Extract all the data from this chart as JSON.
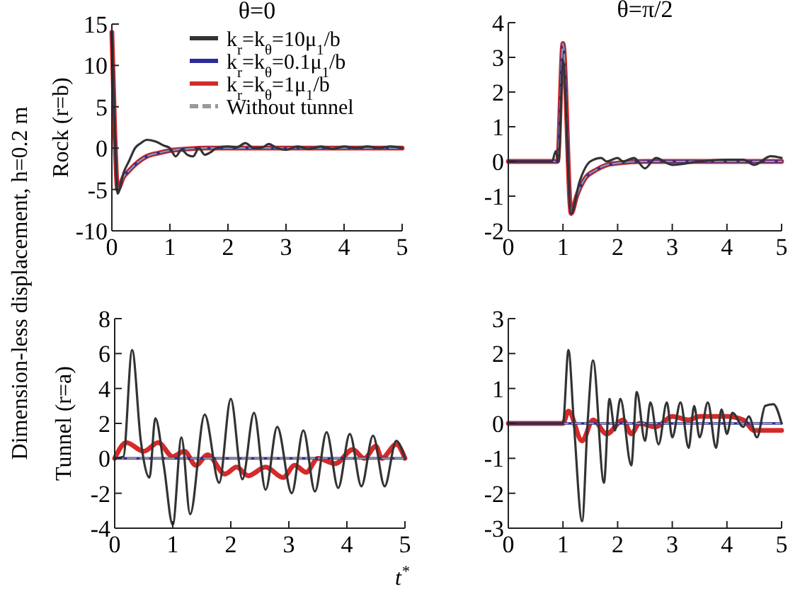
{
  "chart_data": [
    {
      "type": "line",
      "title": "θ=0",
      "ylabel": "Rock (r=b)",
      "annotations": [
        "Dimension-less displacement, h=0.2 m"
      ],
      "xlim": [
        0,
        5
      ],
      "xticks": [
        0,
        1,
        2,
        3,
        4,
        5
      ],
      "ylim": [
        -10,
        15
      ],
      "yticks": [
        -10,
        -5,
        0,
        5,
        10,
        15
      ],
      "legend": "top right",
      "marker": "none",
      "series": [
        {
          "name": "k$_{r}$=k$_{θ}$=10μ$_{1}$/b",
          "color": "#333333",
          "x": [
            0,
            0.05,
            0.1,
            0.2,
            0.3,
            0.4,
            0.5,
            0.6,
            0.75,
            0.9,
            1.0,
            1.1,
            1.2,
            1.3,
            1.4,
            1.5,
            1.6,
            1.7,
            1.8,
            2.0,
            2.15,
            2.3,
            2.45,
            2.6,
            2.7,
            2.85,
            3.0,
            3.2,
            3.4,
            3.6,
            3.8,
            4.0,
            4.2,
            4.4,
            4.6,
            4.8,
            5.0
          ],
          "values": [
            14,
            2,
            -5.5,
            -3,
            -1.5,
            0,
            0.6,
            1,
            0.8,
            0.3,
            0,
            -1,
            -0.2,
            -0.8,
            -1,
            0,
            -0.8,
            -0.5,
            0,
            0.2,
            0.1,
            0.6,
            0,
            0.1,
            0.5,
            0,
            -0.2,
            0.2,
            -0.1,
            0.2,
            -0.1,
            0.2,
            0,
            0.2,
            0,
            0.2,
            0
          ]
        },
        {
          "name": "k$_{r}$=k$_{θ}$=0.1μ$_{1}$/b",
          "color": "#2b2b9a",
          "x": [
            0,
            0.05,
            0.1,
            0.2,
            0.3,
            0.4,
            0.6,
            0.8,
            1.0,
            1.3,
            1.6,
            2.0,
            3.0,
            4.0,
            5.0
          ],
          "values": [
            14,
            2,
            -5,
            -3.5,
            -2.7,
            -2,
            -1,
            -0.6,
            -0.3,
            -0.1,
            0,
            0,
            0,
            0,
            0
          ]
        },
        {
          "name": "k$_{r}$=k$_{θ}$=1μ$_{1}$/b",
          "color": "#d42a2a",
          "x": [
            0,
            0.05,
            0.1,
            0.2,
            0.3,
            0.4,
            0.6,
            0.8,
            1.0,
            1.3,
            1.6,
            2.0,
            3.0,
            4.0,
            5.0
          ],
          "values": [
            14,
            2,
            -5,
            -3.5,
            -2.7,
            -2,
            -1,
            -0.6,
            -0.3,
            -0.1,
            0,
            0,
            0,
            0,
            0
          ]
        },
        {
          "name": "Without tunnel",
          "color": "#999999",
          "line_style": "dashed",
          "x": [
            0,
            0.05,
            0.1,
            0.2,
            0.3,
            0.4,
            0.6,
            0.8,
            1.0,
            1.3,
            1.6,
            2.0,
            3.0,
            4.0,
            5.0
          ],
          "values": [
            14,
            2,
            -5,
            -3.5,
            -2.7,
            -2,
            -1,
            -0.6,
            -0.3,
            -0.1,
            0,
            0,
            0,
            0,
            0
          ]
        }
      ]
    },
    {
      "type": "line",
      "title": "θ=π/2",
      "xlim": [
        0,
        5
      ],
      "xticks": [
        0,
        1,
        2,
        3,
        4,
        5
      ],
      "ylim": [
        -2,
        4
      ],
      "yticks": [
        -2,
        -1,
        0,
        1,
        2,
        3,
        4
      ],
      "marker": "none",
      "series": [
        {
          "color": "#333333",
          "x": [
            0,
            0.8,
            0.87,
            0.92,
            1.0,
            1.15,
            1.3,
            1.5,
            1.7,
            1.8,
            2.0,
            2.1,
            2.3,
            2.5,
            2.7,
            3.0,
            3.5,
            4.0,
            4.3,
            4.5,
            4.8,
            5.0
          ],
          "values": [
            0,
            0,
            0.3,
            0,
            2.9,
            -1.5,
            -0.6,
            0,
            0.1,
            0,
            0.1,
            0,
            0.1,
            -0.2,
            0.1,
            -0.1,
            0,
            0.05,
            0.05,
            -0.1,
            0.15,
            0.1
          ]
        },
        {
          "color": "#2b2b9a",
          "x": [
            0,
            0.9,
            1.0,
            1.15,
            1.25,
            1.4,
            1.6,
            1.8,
            2.0,
            2.5,
            3.0,
            4.0,
            5.0
          ],
          "values": [
            0,
            0,
            3.4,
            -1.5,
            -1,
            -0.5,
            -0.25,
            -0.1,
            -0.05,
            0,
            0,
            0,
            0
          ]
        },
        {
          "color": "#d42a2a",
          "x": [
            0,
            0.9,
            1.0,
            1.15,
            1.25,
            1.4,
            1.6,
            1.8,
            2.0,
            2.5,
            3.0,
            4.0,
            5.0
          ],
          "values": [
            0,
            0,
            3.4,
            -1.5,
            -1,
            -0.5,
            -0.25,
            -0.1,
            -0.05,
            0,
            0,
            0,
            0
          ]
        },
        {
          "color": "#999999",
          "line_style": "dashed",
          "x": [
            0,
            0.9,
            1.0,
            1.15,
            1.25,
            1.4,
            1.6,
            1.8,
            2.0,
            2.5,
            3.0,
            4.0,
            5.0
          ],
          "values": [
            0,
            0,
            3.4,
            -1.5,
            -1,
            -0.5,
            -0.25,
            -0.1,
            -0.05,
            0,
            0,
            0,
            0
          ]
        }
      ]
    },
    {
      "type": "line",
      "ylabel": "Tunnel (r=a)",
      "xlabel": "t$^{*}$",
      "xlim": [
        0,
        5
      ],
      "xticks": [
        0,
        1,
        2,
        3,
        4,
        5
      ],
      "ylim": [
        -4,
        8
      ],
      "yticks": [
        -4,
        -2,
        0,
        2,
        4,
        6,
        8
      ],
      "marker": "none",
      "series": [
        {
          "color": "#333333",
          "x": [
            0,
            0.15,
            0.3,
            0.45,
            0.6,
            0.7,
            0.85,
            1.0,
            1.15,
            1.3,
            1.55,
            1.8,
            2.0,
            2.2,
            2.4,
            2.6,
            2.8,
            3.05,
            3.25,
            3.45,
            3.65,
            3.85,
            4.05,
            4.25,
            4.45,
            4.65,
            4.85,
            5.0
          ],
          "values": [
            0,
            0.1,
            6.2,
            1,
            -1.1,
            2.3,
            -0.5,
            -3.8,
            1.2,
            -3.2,
            2.5,
            -1.4,
            3.4,
            -1.2,
            2.6,
            -1.8,
            1.8,
            -2,
            1.6,
            -1.9,
            1.5,
            -1.7,
            1.4,
            -1.6,
            1.3,
            -1.6,
            1,
            0
          ]
        },
        {
          "color": "#2b2b9a",
          "x": [
            0,
            5
          ],
          "values": [
            0,
            0
          ]
        },
        {
          "color": "#d42a2a",
          "x": [
            0,
            0.2,
            0.5,
            0.75,
            1.0,
            1.2,
            1.4,
            1.6,
            1.9,
            2.1,
            2.3,
            2.6,
            2.9,
            3.1,
            3.3,
            3.5,
            3.8,
            4.1,
            4.3,
            4.5,
            4.6,
            4.85,
            5.0
          ],
          "values": [
            0,
            0.9,
            0.4,
            0.9,
            0.1,
            0.4,
            -0.4,
            0.2,
            -0.9,
            -0.5,
            -1,
            -0.5,
            -1.1,
            -0.4,
            -0.8,
            0,
            -0.3,
            0.5,
            0,
            0.7,
            0,
            0.8,
            0
          ]
        },
        {
          "color": "#999999",
          "line_style": "dashed",
          "x": [
            0,
            5
          ],
          "values": [
            0,
            0
          ]
        }
      ]
    },
    {
      "type": "line",
      "xlim": [
        0,
        5
      ],
      "xticks": [
        0,
        1,
        2,
        3,
        4,
        5
      ],
      "ylim": [
        -3,
        3
      ],
      "yticks": [
        -3,
        -2,
        -1,
        0,
        1,
        2,
        3
      ],
      "marker": "none",
      "series": [
        {
          "color": "#333333",
          "x": [
            0,
            0.9,
            1.0,
            1.1,
            1.2,
            1.35,
            1.45,
            1.55,
            1.75,
            1.85,
            1.95,
            2.05,
            2.25,
            2.35,
            2.5,
            2.6,
            2.75,
            2.9,
            3.0,
            3.15,
            3.3,
            3.4,
            3.5,
            3.65,
            3.8,
            3.9,
            4.0,
            4.1,
            4.3,
            4.4,
            4.55,
            4.7,
            4.85,
            5.0
          ],
          "values": [
            0,
            0,
            0,
            2.1,
            0,
            -2.8,
            0,
            1.8,
            -1.7,
            0.7,
            -0.2,
            0.7,
            -1.2,
            0.9,
            -0.5,
            0.6,
            -0.6,
            0.6,
            -0.4,
            0.6,
            -0.7,
            0.5,
            -0.4,
            0.6,
            -0.7,
            0.4,
            -0.3,
            0.3,
            -0.1,
            0.2,
            -0.4,
            0.5,
            0.55,
            0
          ]
        },
        {
          "color": "#2b2b9a",
          "x": [
            0,
            5
          ],
          "values": [
            0,
            0
          ]
        },
        {
          "color": "#d42a2a",
          "x": [
            0,
            1.0,
            1.1,
            1.35,
            1.55,
            1.8,
            2.1,
            2.25,
            2.4,
            2.7,
            3.0,
            3.3,
            3.5,
            4.0,
            4.3,
            4.5,
            4.85,
            5.0
          ],
          "values": [
            0,
            0,
            0.35,
            -0.5,
            0.1,
            -0.3,
            0.1,
            -0.3,
            0,
            -0.1,
            0.2,
            0.1,
            0.2,
            0.2,
            0.1,
            -0.2,
            -0.2,
            -0.2
          ]
        },
        {
          "color": "#999999",
          "line_style": "dashed",
          "x": [
            0,
            5
          ],
          "values": [
            0,
            0
          ]
        }
      ]
    }
  ]
}
